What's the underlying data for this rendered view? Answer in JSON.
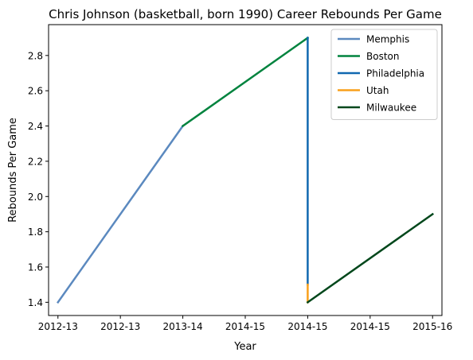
{
  "chart_data": {
    "type": "line",
    "title": "Chris Johnson (basketball, born 1990) Career Rebounds Per Game",
    "xlabel": "Year",
    "ylabel": "Rebounds Per Game",
    "xlim": [
      -0.15,
      6.15
    ],
    "ylim": [
      1.325,
      2.975
    ],
    "x_ticks": [
      {
        "x": 0,
        "label": "2012-13"
      },
      {
        "x": 1,
        "label": "2012-13"
      },
      {
        "x": 2,
        "label": "2013-14"
      },
      {
        "x": 3,
        "label": "2014-15"
      },
      {
        "x": 4,
        "label": "2014-15"
      },
      {
        "x": 5,
        "label": "2014-15"
      },
      {
        "x": 6,
        "label": "2015-16"
      }
    ],
    "y_ticks": [
      1.4,
      1.6,
      1.8,
      2.0,
      2.2,
      2.4,
      2.6,
      2.8
    ],
    "legend_position": "top-right",
    "grid": false,
    "series": [
      {
        "name": "Memphis",
        "color": "#5b89bf",
        "points": [
          [
            0,
            1.4
          ],
          [
            2,
            2.4
          ]
        ]
      },
      {
        "name": "Boston",
        "color": "#00833e",
        "points": [
          [
            2,
            2.4
          ],
          [
            4,
            2.9
          ]
        ]
      },
      {
        "name": "Philadelphia",
        "color": "#1068b0",
        "points": [
          [
            4,
            2.9
          ],
          [
            4,
            1.5
          ]
        ]
      },
      {
        "name": "Utah",
        "color": "#f9a01b",
        "points": [
          [
            4,
            1.5
          ],
          [
            4,
            1.4
          ]
        ]
      },
      {
        "name": "Milwaukee",
        "color": "#00471b",
        "points": [
          [
            4,
            1.4
          ],
          [
            6,
            1.9
          ]
        ]
      }
    ]
  }
}
